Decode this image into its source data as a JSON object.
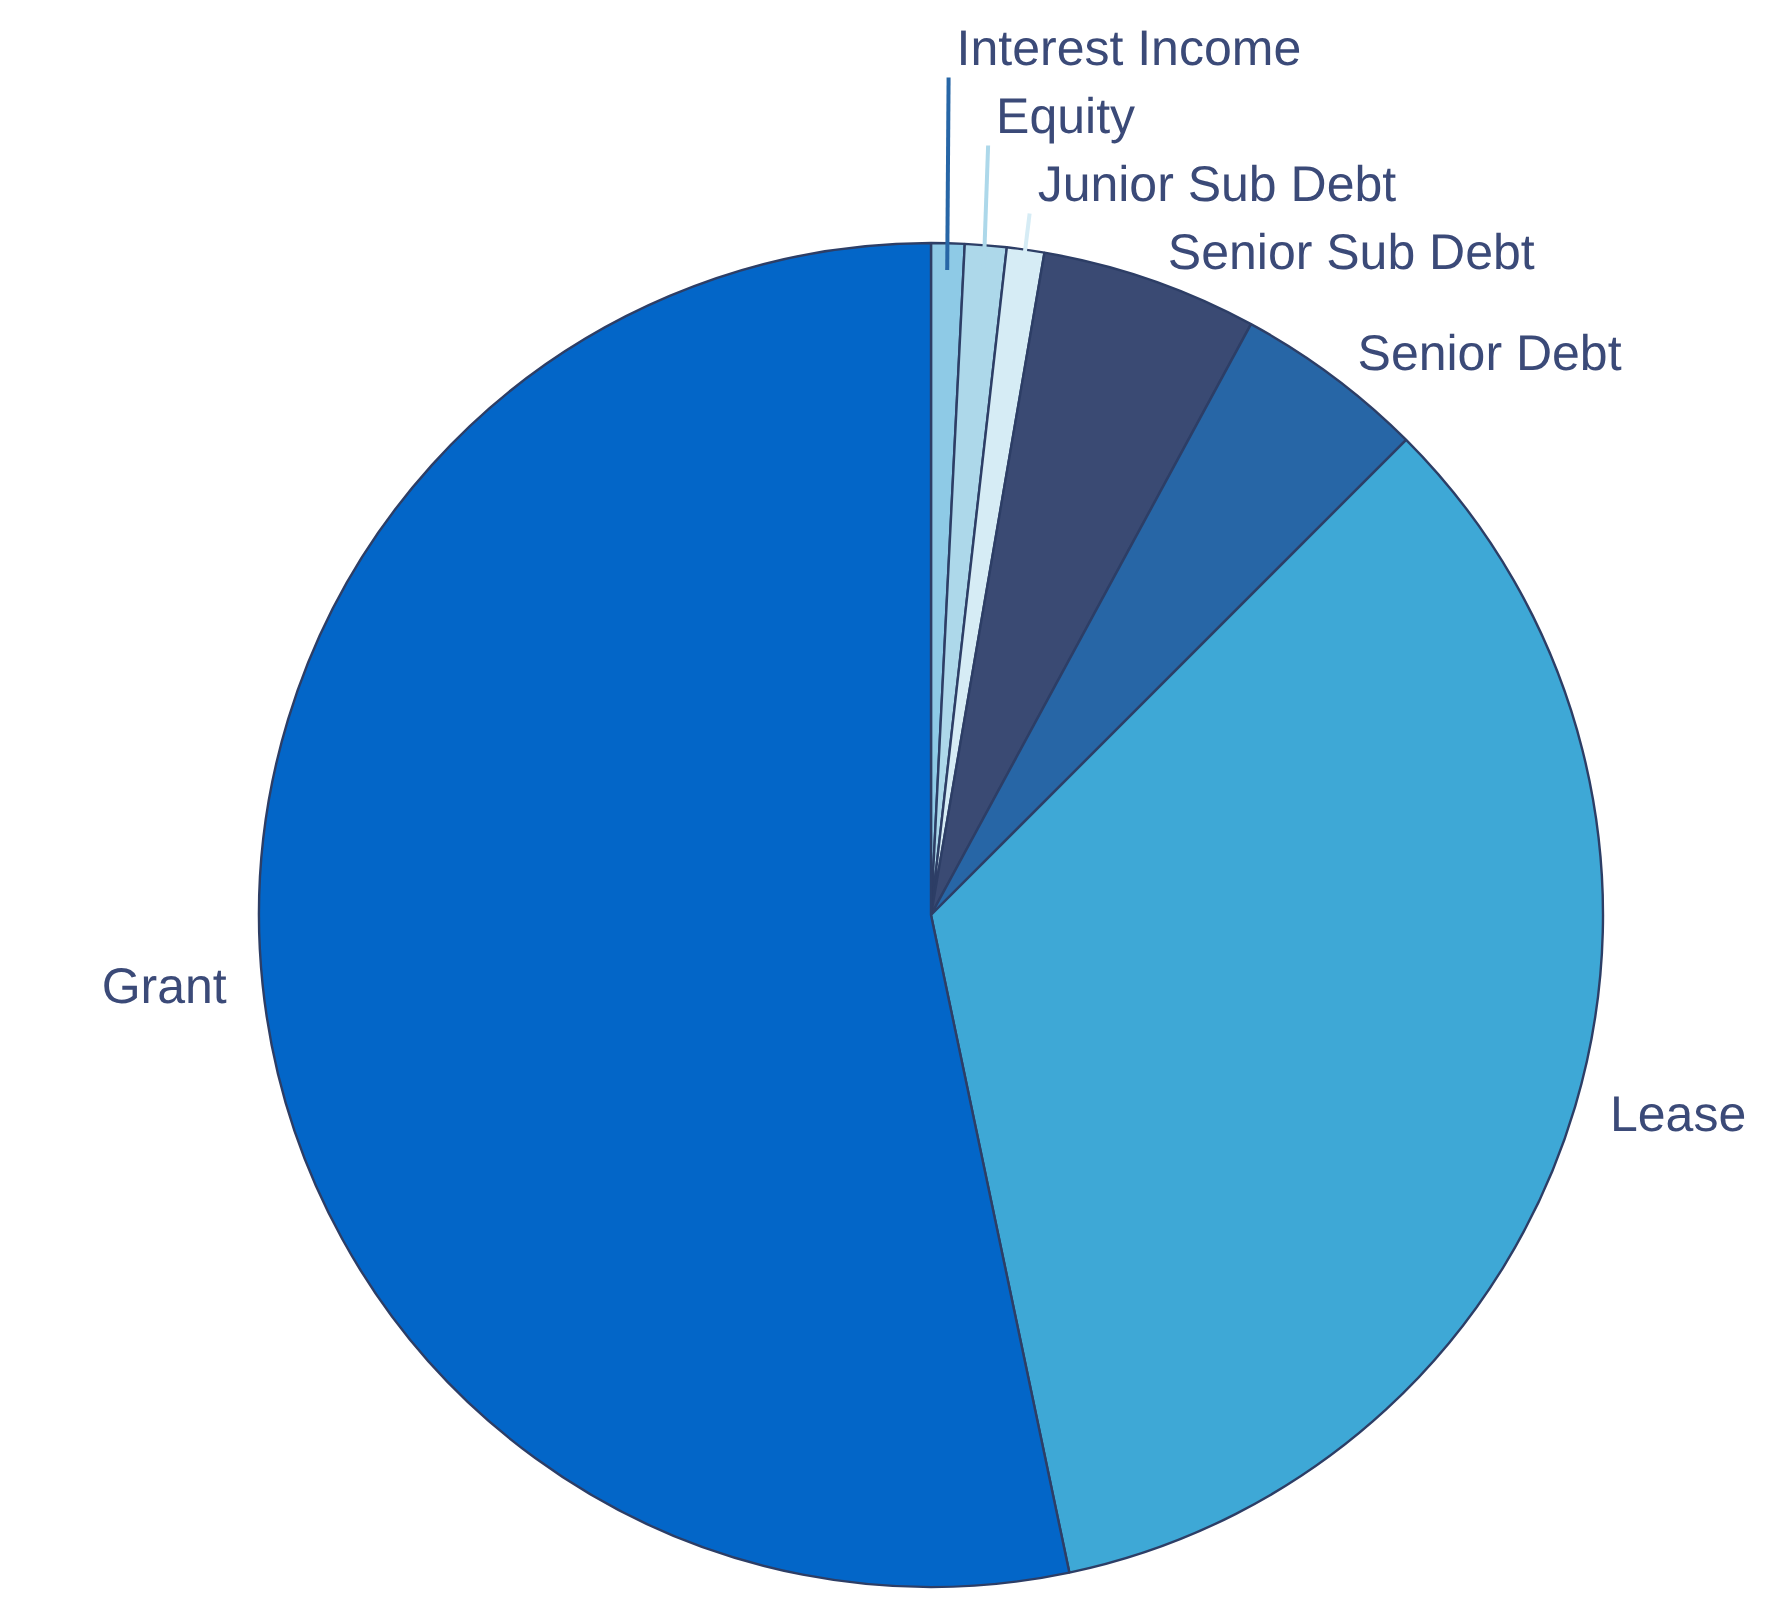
{
  "chart_data": {
    "type": "pie",
    "categories": [
      "Interest Income",
      "Equity",
      "Junior Sub Debt",
      "Senior Sub Debt",
      "Senior Debt",
      "Lease",
      "Grant"
    ],
    "values": [
      0.8,
      1.0,
      0.9,
      5.2,
      4.6,
      34.2,
      53.3
    ],
    "colors": [
      "#8ecae6",
      "#add8ea",
      "#d6ecf5",
      "#3a4a73",
      "#2766a6",
      "#3ea8d6",
      "#0366c8"
    ],
    "legend": false
  }
}
